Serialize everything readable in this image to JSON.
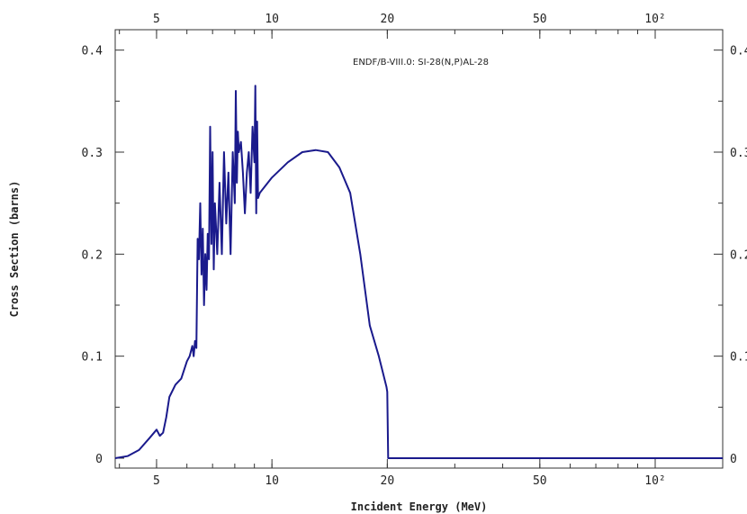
{
  "chart_data": {
    "type": "line",
    "title": "",
    "annotation": "ENDF/B-VIII.0: SI-28(N,P)AL-28",
    "xlabel": "Incident Energy (MeV)",
    "ylabel": "Cross Section (barns)",
    "x_scale": "log",
    "xlim": [
      3.9,
      150
    ],
    "ylim": [
      0,
      0.42
    ],
    "grid": false,
    "x_ticks": [
      {
        "value": 5,
        "label": "5"
      },
      {
        "value": 10,
        "label": "10"
      },
      {
        "value": 20,
        "label": "20"
      },
      {
        "value": 50,
        "label": "50"
      },
      {
        "value": 100,
        "label": "10²"
      }
    ],
    "y_ticks": [
      {
        "value": 0,
        "label": "0"
      },
      {
        "value": 0.1,
        "label": "0.1"
      },
      {
        "value": 0.2,
        "label": "0.2"
      },
      {
        "value": 0.3,
        "label": "0.3"
      },
      {
        "value": 0.4,
        "label": "0.4"
      }
    ],
    "series": [
      {
        "color": "#1a1a8c",
        "x": [
          3.9,
          4.2,
          4.5,
          4.8,
          5.0,
          5.1,
          5.2,
          5.3,
          5.4,
          5.6,
          5.8,
          6.0,
          6.1,
          6.2,
          6.25,
          6.3,
          6.35,
          6.4,
          6.45,
          6.5,
          6.55,
          6.6,
          6.65,
          6.7,
          6.75,
          6.8,
          6.85,
          6.9,
          6.95,
          7.0,
          7.05,
          7.1,
          7.2,
          7.3,
          7.4,
          7.5,
          7.6,
          7.7,
          7.8,
          7.9,
          8.0,
          8.05,
          8.1,
          8.15,
          8.2,
          8.3,
          8.4,
          8.5,
          8.6,
          8.7,
          8.8,
          8.9,
          9.0,
          9.05,
          9.1,
          9.15,
          9.2,
          9.3,
          10.0,
          11.0,
          12.0,
          13.0,
          14.0,
          15.0,
          16.0,
          17.0,
          18.0,
          19.0,
          19.9,
          20.0,
          20.1,
          30.0,
          50.0,
          100.0,
          150.0
        ],
        "y": [
          0.0,
          0.002,
          0.008,
          0.02,
          0.028,
          0.022,
          0.025,
          0.04,
          0.06,
          0.072,
          0.078,
          0.095,
          0.1,
          0.11,
          0.1,
          0.115,
          0.108,
          0.215,
          0.195,
          0.25,
          0.18,
          0.225,
          0.15,
          0.2,
          0.165,
          0.22,
          0.195,
          0.325,
          0.21,
          0.3,
          0.185,
          0.25,
          0.2,
          0.27,
          0.2,
          0.3,
          0.23,
          0.28,
          0.2,
          0.3,
          0.25,
          0.36,
          0.27,
          0.32,
          0.3,
          0.31,
          0.28,
          0.24,
          0.28,
          0.3,
          0.26,
          0.325,
          0.29,
          0.365,
          0.24,
          0.33,
          0.255,
          0.26,
          0.275,
          0.29,
          0.3,
          0.302,
          0.3,
          0.285,
          0.26,
          0.2,
          0.13,
          0.1,
          0.07,
          0.065,
          0.0,
          0.0,
          0.0,
          0.0,
          0.0
        ]
      }
    ]
  }
}
